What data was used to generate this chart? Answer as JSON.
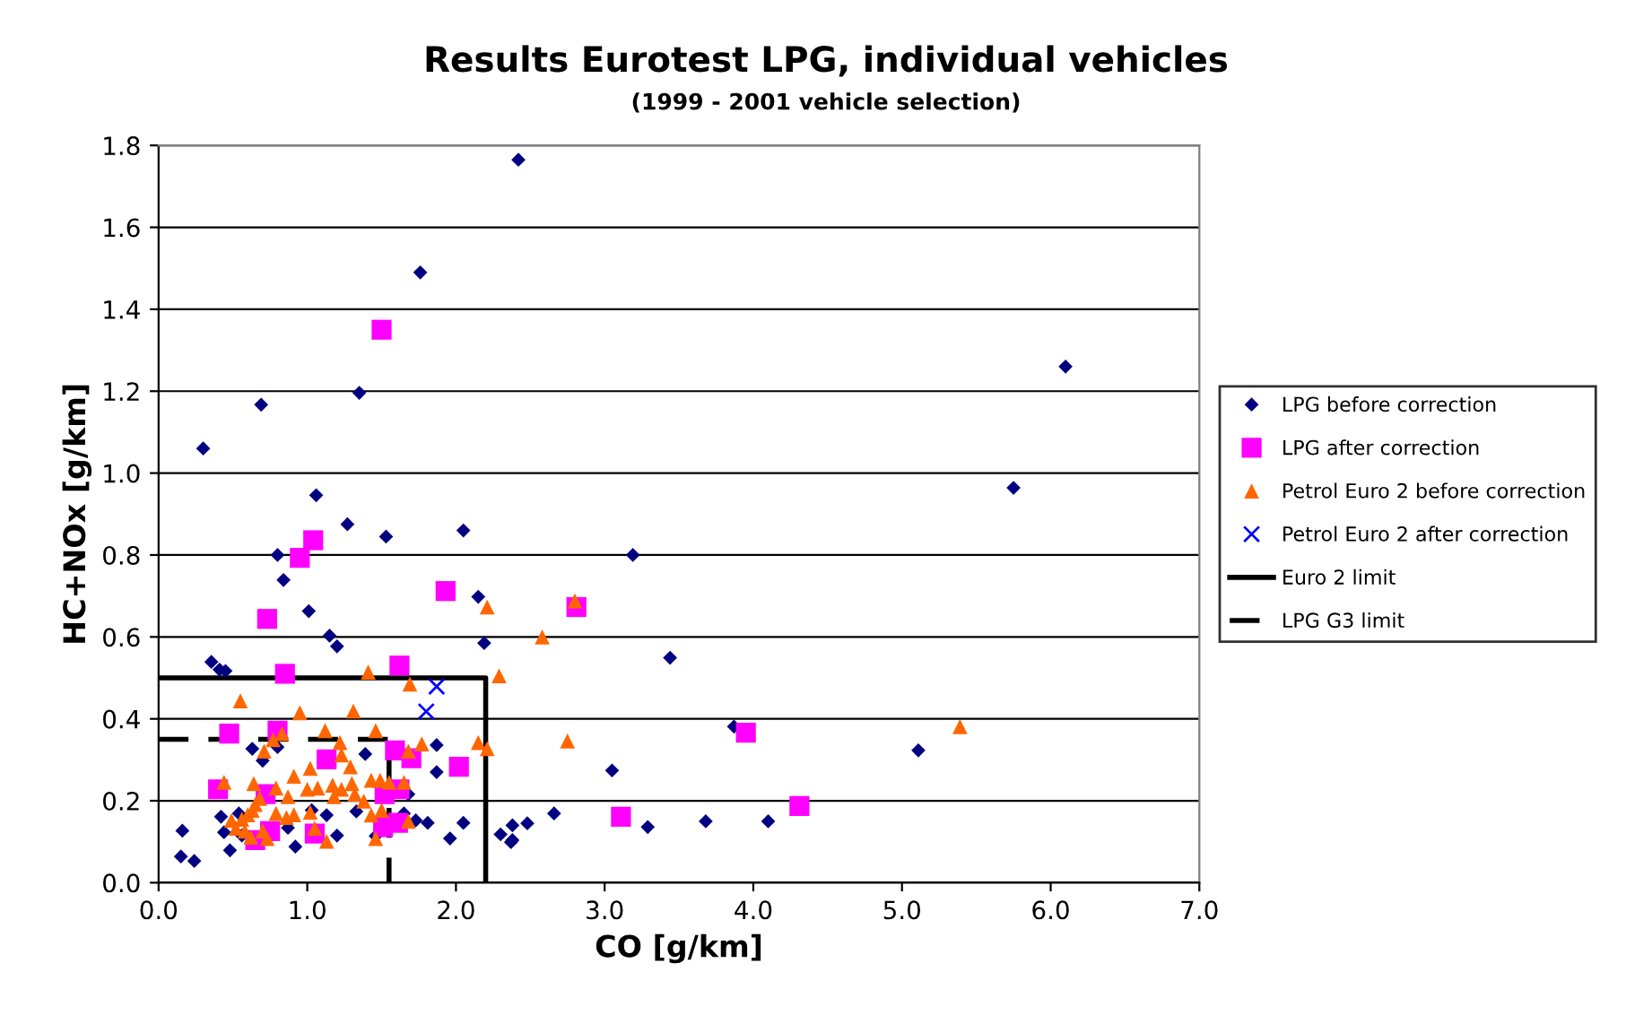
{
  "chart_data": {
    "type": "scatter",
    "title": "Results Eurotest LPG, individual vehicles",
    "subtitle": "(1999 - 2001 vehicle selection)",
    "xlabel": "CO [g/km]",
    "ylabel": "HC+NOx [g/km]",
    "xlim": [
      0,
      7
    ],
    "xticks": [
      {
        "value": 0,
        "label": "0.0"
      },
      {
        "value": 1,
        "label": "1.0"
      },
      {
        "value": 2,
        "label": "2.0"
      },
      {
        "value": 3,
        "label": "3.0"
      },
      {
        "value": 4,
        "label": "4.0"
      },
      {
        "value": 5,
        "label": "5.0"
      },
      {
        "value": 6,
        "label": "6.0"
      },
      {
        "value": 7,
        "label": "7.0"
      }
    ],
    "ylim": [
      0,
      1.8
    ],
    "yticks": [
      {
        "value": 0,
        "label": "0.0"
      },
      {
        "value": 0.2,
        "label": "0.2"
      },
      {
        "value": 0.4,
        "label": "0.4"
      },
      {
        "value": 0.6,
        "label": "0.6"
      },
      {
        "value": 0.8,
        "label": "0.8"
      },
      {
        "value": 1.0,
        "label": "1.0"
      },
      {
        "value": 1.2,
        "label": "1.2"
      },
      {
        "value": 1.4,
        "label": "1.4"
      },
      {
        "value": 1.6,
        "label": "1.6"
      },
      {
        "value": 1.8,
        "label": "1.8"
      }
    ],
    "grid": "y",
    "legend": "right",
    "series": [
      {
        "name": "LPG before correction",
        "color": "#000080",
        "marker": "diamond",
        "x": [
          2.42,
          1.76,
          1.35,
          0.69,
          0.3,
          1.06,
          1.27,
          1.53,
          2.05,
          0.8,
          3.19,
          6.1,
          5.75,
          3.44,
          3.87,
          5.11,
          3.05,
          3.29,
          3.68,
          4.1,
          2.66,
          2.48,
          2.38,
          2.38,
          0.84,
          1.01,
          1.15,
          1.2,
          2.15,
          2.19,
          0.355,
          0.41,
          0.45,
          0.63,
          0.7,
          0.8,
          1.39,
          1.87,
          1.87,
          0.42,
          0.54,
          0.16,
          0.15,
          0.24,
          0.48,
          0.44,
          0.92,
          1.13,
          1.2,
          1.33,
          1.03,
          0.87,
          1.46,
          1.68,
          1.73,
          1.81,
          1.96,
          2.05,
          2.3,
          2.37,
          1.65,
          0.56
        ],
        "values": [
          1.765,
          1.49,
          1.196,
          1.167,
          1.06,
          0.946,
          0.875,
          0.845,
          0.86,
          0.8,
          0.8,
          1.26,
          0.964,
          0.549,
          0.381,
          0.323,
          0.274,
          0.136,
          0.15,
          0.15,
          0.169,
          0.145,
          0.14,
          0.104,
          0.739,
          0.663,
          0.603,
          0.577,
          0.698,
          0.585,
          0.539,
          0.52,
          0.517,
          0.327,
          0.298,
          0.331,
          0.314,
          0.336,
          0.27,
          0.161,
          0.169,
          0.127,
          0.064,
          0.053,
          0.079,
          0.123,
          0.088,
          0.165,
          0.115,
          0.174,
          0.177,
          0.134,
          0.114,
          0.216,
          0.152,
          0.146,
          0.108,
          0.146,
          0.118,
          0.099,
          0.169,
          0.115
        ]
      },
      {
        "name": "LPG after correction",
        "color": "#ff00ff",
        "marker": "square",
        "x": [
          1.5,
          1.04,
          0.95,
          1.93,
          0.73,
          0.85,
          1.62,
          0.475,
          0.8,
          1.59,
          1.7,
          2.02,
          1.13,
          0.4,
          0.72,
          1.52,
          1.62,
          1.51,
          1.61,
          1.05,
          0.65,
          0.75,
          2.81,
          3.95,
          3.11,
          4.31
        ],
        "values": [
          1.35,
          0.836,
          0.793,
          0.712,
          0.644,
          0.51,
          0.53,
          0.364,
          0.371,
          0.323,
          0.304,
          0.283,
          0.301,
          0.228,
          0.216,
          0.216,
          0.228,
          0.136,
          0.146,
          0.12,
          0.104,
          0.126,
          0.673,
          0.366,
          0.161,
          0.187
        ]
      },
      {
        "name": "Petrol Euro 2 before correction",
        "color": "#ff6600",
        "marker": "triangle",
        "x": [
          2.21,
          2.29,
          0.55,
          0.95,
          1.31,
          1.41,
          1.69,
          1.12,
          1.46,
          0.83,
          0.77,
          1.22,
          1.77,
          2.15,
          2.21,
          1.68,
          0.71,
          1.23,
          1.29,
          1.02,
          0.91,
          0.44,
          0.64,
          0.79,
          1.0,
          1.07,
          1.17,
          1.23,
          1.3,
          1.32,
          1.43,
          1.49,
          1.55,
          1.65,
          1.18,
          0.87,
          0.68,
          0.65,
          0.63,
          0.6,
          0.56,
          0.49,
          0.52,
          0.58,
          0.62,
          0.7,
          0.73,
          0.79,
          0.86,
          0.91,
          1.02,
          1.38,
          1.43,
          1.5,
          1.68,
          1.05,
          1.13,
          1.46,
          2.58,
          2.8,
          2.75,
          5.39
        ],
        "values": [
          0.673,
          0.505,
          0.444,
          0.415,
          0.419,
          0.514,
          0.485,
          0.371,
          0.371,
          0.364,
          0.349,
          0.342,
          0.339,
          0.342,
          0.327,
          0.321,
          0.321,
          0.312,
          0.283,
          0.279,
          0.26,
          0.245,
          0.242,
          0.231,
          0.228,
          0.231,
          0.238,
          0.228,
          0.242,
          0.216,
          0.25,
          0.25,
          0.245,
          0.245,
          0.21,
          0.21,
          0.206,
          0.191,
          0.177,
          0.166,
          0.155,
          0.152,
          0.133,
          0.126,
          0.111,
          0.126,
          0.108,
          0.169,
          0.159,
          0.166,
          0.172,
          0.199,
          0.165,
          0.177,
          0.15,
          0.133,
          0.101,
          0.108,
          0.6,
          0.688,
          0.346,
          0.381
        ]
      },
      {
        "name": "Petrol Euro 2 after correction",
        "color": "#0000ff",
        "marker": "cross",
        "x": [
          1.87,
          1.8
        ],
        "values": [
          0.479,
          0.418
        ]
      },
      {
        "name": "Euro 2 limit",
        "type": "line",
        "color": "#000000",
        "line_style": "solid",
        "x": [
          0,
          2.2,
          2.2
        ],
        "values": [
          0.5,
          0.5,
          0
        ]
      },
      {
        "name": "LPG G3 limit",
        "type": "line",
        "color": "#000000",
        "line_style": "dashed",
        "x": [
          0,
          1.55,
          1.55
        ],
        "values": [
          0.35,
          0.35,
          0
        ]
      }
    ]
  }
}
